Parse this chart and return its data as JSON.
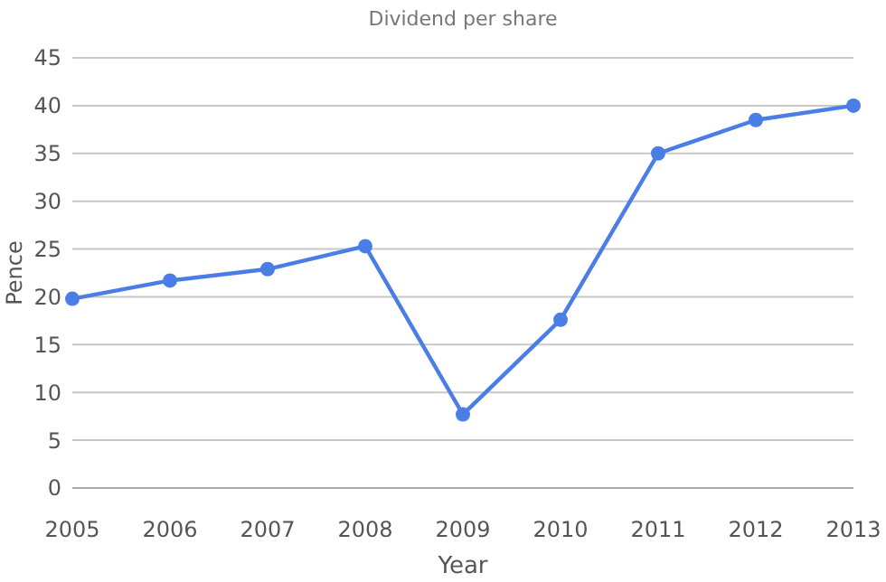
{
  "chart_data": {
    "type": "line",
    "title": "Dividend per share",
    "xlabel": "Year",
    "ylabel": "Pence",
    "x": [
      2005,
      2006,
      2007,
      2008,
      2009,
      2010,
      2011,
      2012,
      2013
    ],
    "series": [
      {
        "color": "#4a7ee6",
        "values": [
          19.8,
          21.7,
          22.9,
          25.3,
          7.7,
          17.6,
          35,
          38.5,
          40
        ]
      }
    ],
    "xlim": [
      2005,
      2013
    ],
    "xticks": [
      2005,
      2006,
      2007,
      2008,
      2009,
      2010,
      2011,
      2012,
      2013
    ],
    "ylim": [
      0,
      45
    ],
    "yticks": [
      0,
      5,
      10,
      15,
      20,
      25,
      30,
      35,
      40,
      45
    ],
    "grid": "y",
    "marker": "circle",
    "line_style": "solid"
  }
}
